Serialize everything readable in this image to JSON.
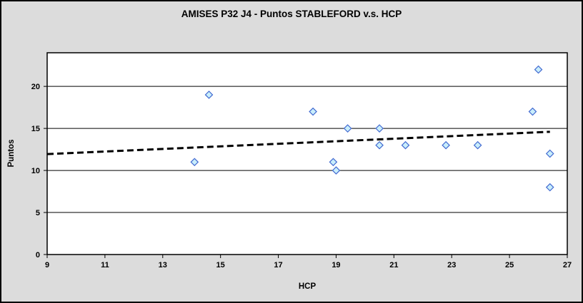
{
  "window": {
    "background_color": "#dcdcdc",
    "border_color": "#000000"
  },
  "chart_data": {
    "type": "scatter",
    "title": "AMISES P32 J4 - Puntos STABLEFORD v.s. HCP",
    "xlabel": "HCP",
    "ylabel": "Puntos",
    "xlim": [
      9,
      27
    ],
    "ylim": [
      0,
      24
    ],
    "x_ticks": [
      9,
      11,
      13,
      15,
      17,
      19,
      21,
      23,
      25,
      27
    ],
    "y_ticks": [
      0,
      5,
      10,
      15,
      20
    ],
    "grid": "horizontal-only",
    "legend": "none",
    "plot_bg": "#ffffff",
    "series": [
      {
        "name": "Puntos STABLEFORD",
        "marker": {
          "shape": "diamond",
          "size": 10,
          "fill": "#c9eefb",
          "stroke": "#4169d1"
        },
        "points": [
          [
            14.1,
            11
          ],
          [
            14.6,
            19
          ],
          [
            18.2,
            17
          ],
          [
            18.9,
            11
          ],
          [
            19.0,
            10
          ],
          [
            19.4,
            15
          ],
          [
            20.5,
            13
          ],
          [
            20.5,
            15
          ],
          [
            21.4,
            13
          ],
          [
            22.8,
            13
          ],
          [
            23.9,
            13
          ],
          [
            25.8,
            17
          ],
          [
            26.0,
            22
          ],
          [
            26.4,
            8
          ],
          [
            26.4,
            12
          ]
        ]
      }
    ],
    "trendline": {
      "style": "dashed",
      "color": "#000000",
      "width": 3,
      "x_start": 9,
      "y_start": 11.95,
      "x_end": 26.4,
      "y_end": 14.6
    }
  }
}
